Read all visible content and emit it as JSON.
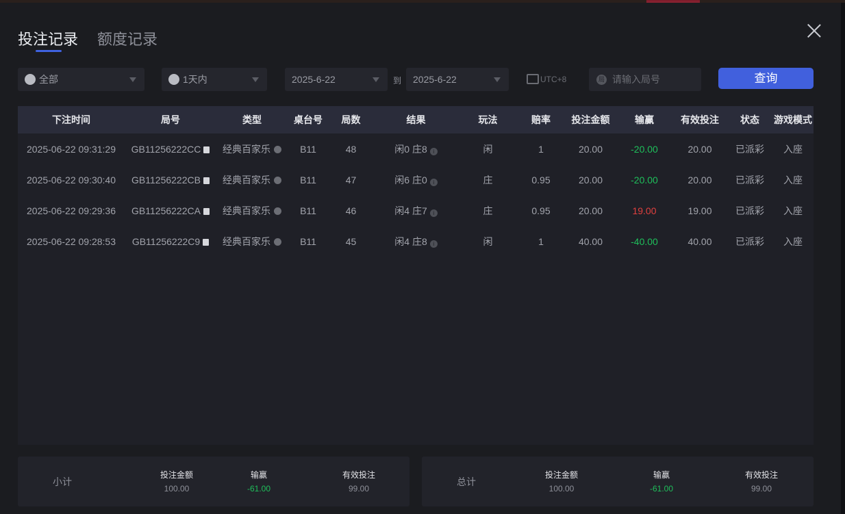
{
  "tabs": [
    {
      "label": "投注记录",
      "active": true
    },
    {
      "label": "额度记录",
      "active": false
    }
  ],
  "filters": {
    "game_type": {
      "icon": "spade-icon",
      "value": "全部"
    },
    "period": {
      "icon": "clock-icon",
      "value": "1天内"
    },
    "date_from": "2025-6-22",
    "to_label": "到",
    "date_to": "2025-6-22",
    "timezone": "UTC+8",
    "round_search_placeholder": "请输入局号",
    "round_search_icon_text": "局",
    "query_label": "查询"
  },
  "accent_color": "#4160dd",
  "table": {
    "headers": [
      "下注时间",
      "局号",
      "类型",
      "桌台号",
      "局数",
      "结果",
      "玩法",
      "赔率",
      "投注金额",
      "输赢",
      "有效投注",
      "状态",
      "游戏模式"
    ],
    "rows": [
      {
        "time": "2025-06-22 09:31:29",
        "round": "GB11256222CC",
        "type": "经典百家乐",
        "table": "B11",
        "game_no": "48",
        "result": "闲0 庄8",
        "play": "闲",
        "odds": "1",
        "bet": "20.00",
        "win_loss": "-20.00",
        "valid_bet": "20.00",
        "status": "已派彩",
        "mode": "入座"
      },
      {
        "time": "2025-06-22 09:30:40",
        "round": "GB11256222CB",
        "type": "经典百家乐",
        "table": "B11",
        "game_no": "47",
        "result": "闲6 庄0",
        "play": "庄",
        "odds": "0.95",
        "bet": "20.00",
        "win_loss": "-20.00",
        "valid_bet": "20.00",
        "status": "已派彩",
        "mode": "入座"
      },
      {
        "time": "2025-06-22 09:29:36",
        "round": "GB11256222CA",
        "type": "经典百家乐",
        "table": "B11",
        "game_no": "46",
        "result": "闲4 庄7",
        "play": "庄",
        "odds": "0.95",
        "bet": "20.00",
        "win_loss": "19.00",
        "valid_bet": "19.00",
        "status": "已派彩",
        "mode": "入座"
      },
      {
        "time": "2025-06-22 09:28:53",
        "round": "GB11256222C9",
        "type": "经典百家乐",
        "table": "B11",
        "game_no": "45",
        "result": "闲4 庄8",
        "play": "闲",
        "odds": "1",
        "bet": "40.00",
        "win_loss": "-40.00",
        "valid_bet": "40.00",
        "status": "已派彩",
        "mode": "入座"
      }
    ]
  },
  "subtotal": {
    "label": "小计",
    "bet_label": "投注金额",
    "bet": "100.00",
    "win_label": "输赢",
    "win": "-61.00",
    "valid_label": "有效投注",
    "valid": "99.00"
  },
  "total": {
    "label": "总计",
    "bet_label": "投注金额",
    "bet": "100.00",
    "win_label": "输赢",
    "win": "-61.00",
    "valid_label": "有效投注",
    "valid": "99.00"
  }
}
